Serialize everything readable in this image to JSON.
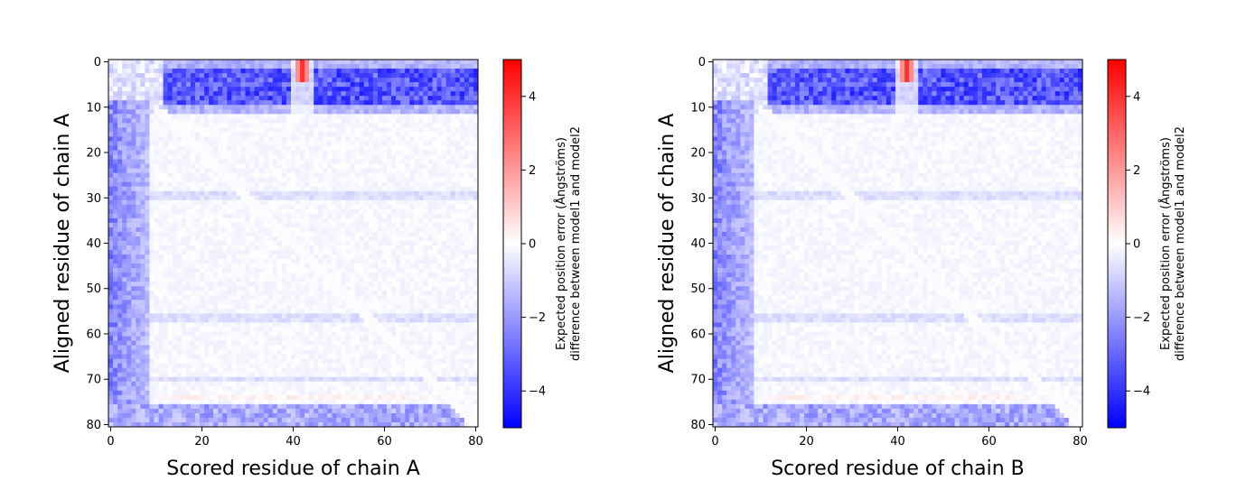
{
  "chart_data": [
    {
      "type": "heatmap",
      "xlabel": "Scored residue of chain A",
      "ylabel": "Aligned residue of chain A",
      "x_range": [
        0,
        80
      ],
      "y_range": [
        0,
        80
      ],
      "x_ticks": [
        0,
        20,
        40,
        60,
        80
      ],
      "y_ticks": [
        0,
        10,
        20,
        30,
        40,
        50,
        60,
        70,
        80
      ],
      "n_residues": 81,
      "colorbar": {
        "label_line1": "Expected position error (Ångströms)",
        "label_line2": "difference between model1 and model2",
        "range": [
          -5,
          5
        ],
        "ticks": [
          4,
          2,
          0,
          -2,
          -4
        ],
        "colormap": "bwr",
        "low_color": "#0000ff",
        "mid_color": "#ffffff",
        "high_color": "#ff0000"
      },
      "features": {
        "top_band_rows": [
          0,
          11
        ],
        "top_band_value": -4,
        "left_band_cols": [
          0,
          8
        ],
        "left_band_value": -2.5,
        "bottom_band_rows": [
          76,
          80
        ],
        "bottom_band_value": -2.5,
        "red_spike_col": 42,
        "red_spike_rows": [
          0,
          4
        ],
        "red_spike_value": 4
      }
    },
    {
      "type": "heatmap",
      "xlabel": "Scored residue of chain B",
      "ylabel": "Aligned residue of chain A",
      "x_range": [
        0,
        80
      ],
      "y_range": [
        0,
        80
      ],
      "x_ticks": [
        0,
        20,
        40,
        60,
        80
      ],
      "y_ticks": [
        0,
        10,
        20,
        30,
        40,
        50,
        60,
        70,
        80
      ],
      "n_residues": 81,
      "colorbar": {
        "label_line1": "Expected position error (Ångströms)",
        "label_line2": "difference between model1 and model2",
        "range": [
          -5,
          5
        ],
        "ticks": [
          4,
          2,
          0,
          -2,
          -4
        ],
        "colormap": "bwr",
        "low_color": "#0000ff",
        "mid_color": "#ffffff",
        "high_color": "#ff0000"
      },
      "features": {
        "top_band_rows": [
          0,
          11
        ],
        "top_band_value": -4,
        "left_band_cols": [
          0,
          8
        ],
        "left_band_value": -2.5,
        "bottom_band_rows": [
          76,
          80
        ],
        "bottom_band_value": -2.5,
        "red_spike_col": 42,
        "red_spike_rows": [
          0,
          4
        ],
        "red_spike_value": 4
      }
    }
  ]
}
